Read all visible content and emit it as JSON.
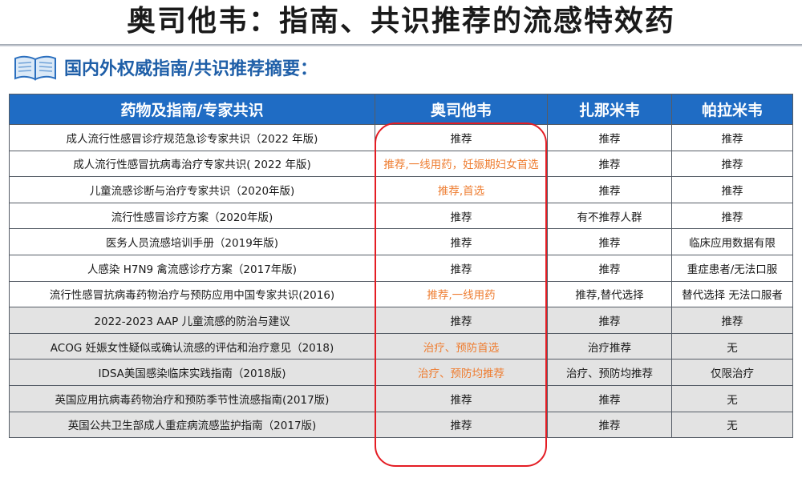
{
  "title": "奥司他韦：指南、共识推荐的流感特效药",
  "subheading": {
    "icon": "open-book-icon",
    "text": "国内外权威指南/共识推荐摘要："
  },
  "colors": {
    "header_bg": "#1f6cc4",
    "accent_text": "#ee7d31",
    "highlight_border": "#e41d24",
    "subheading": "#1f5fa8",
    "shaded_row": "#e3e3e3"
  },
  "table": {
    "headers": [
      "药物及指南/专家共识",
      "奥司他韦",
      "扎那米韦",
      "帕拉米韦"
    ],
    "rows": [
      {
        "guide": "成人流行性感冒诊疗规范急诊专家共识（2022 年版)",
        "oseltamivir": "推荐",
        "zanamivir": "推荐",
        "peramivir": "推荐"
      },
      {
        "guide": "成人流行性感冒抗病毒治疗专家共识( 2022 年版)",
        "oseltamivir": "推荐,一线用药，妊娠期妇女首选",
        "zanamivir": "推荐",
        "peramivir": "推荐"
      },
      {
        "guide": "儿童流感诊断与治疗专家共识（2020年版)",
        "oseltamivir": "推荐,首选",
        "zanamivir": "推荐",
        "peramivir": "推荐"
      },
      {
        "guide": "流行性感冒诊疗方案（2020年版)",
        "oseltamivir": "推荐",
        "zanamivir": "有不推荐人群",
        "peramivir": "推荐"
      },
      {
        "guide": "医务人员流感培训手册（2019年版)",
        "oseltamivir": "推荐",
        "zanamivir": "推荐",
        "peramivir": "临床应用数据有限"
      },
      {
        "guide": "人感染 H7N9 禽流感诊疗方案（2017年版)",
        "oseltamivir": "推荐",
        "zanamivir": "推荐",
        "peramivir": "重症患者/无法口服"
      },
      {
        "guide": "流行性感冒抗病毒药物治疗与预防应用中国专家共识(2016)",
        "oseltamivir": "推荐,一线用药",
        "zanamivir": "推荐,替代选择",
        "peramivir": "替代选择 无法口服者"
      },
      {
        "guide": "2022-2023 AAP 儿童流感的防治与建议",
        "oseltamivir": "推荐",
        "zanamivir": "推荐",
        "peramivir": "推荐"
      },
      {
        "guide": "ACOG 妊娠女性疑似或确认流感的评估和治疗意见（2018)",
        "oseltamivir": "治疗、预防首选",
        "zanamivir": "治疗推荐",
        "peramivir": "无"
      },
      {
        "guide": "IDSA美国感染临床实践指南（2018版)",
        "oseltamivir": "治疗、预防均推荐",
        "zanamivir": "治疗、预防均推荐",
        "peramivir": "仅限治疗"
      },
      {
        "guide": "英国应用抗病毒药物治疗和预防季节性流感指南(2017版)",
        "oseltamivir": "推荐",
        "zanamivir": "推荐",
        "peramivir": "无"
      },
      {
        "guide": "英国公共卫生部成人重症病流感监护指南（2017版)",
        "oseltamivir": "推荐",
        "zanamivir": "推荐",
        "peramivir": "无"
      }
    ]
  }
}
